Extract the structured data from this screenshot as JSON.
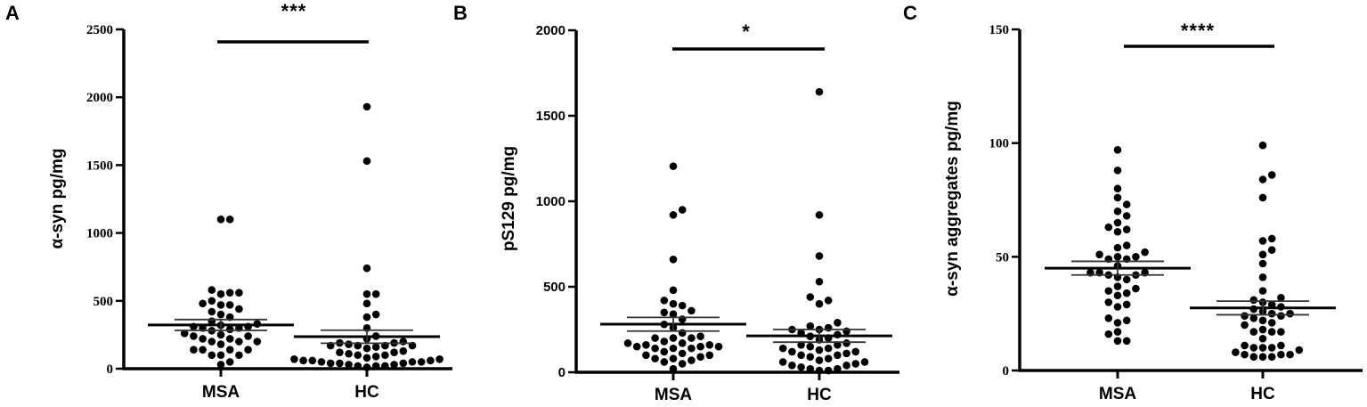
{
  "figure": {
    "panels": [
      {
        "letter": "A",
        "ylabel": "α-syn pg/mg",
        "significance": "***",
        "groups": [
          "MSA",
          "HC"
        ],
        "yticks": [
          "0",
          "500",
          "1000",
          "1500",
          "2000",
          "2500"
        ]
      },
      {
        "letter": "B",
        "ylabel": "pS129 pg/mg",
        "significance": "*",
        "groups": [
          "MSA",
          "HC"
        ],
        "yticks": [
          "0",
          "500",
          "1000",
          "1500",
          "2000"
        ]
      },
      {
        "letter": "C",
        "ylabel": "α-syn aggregates pg/mg",
        "significance": "****",
        "groups": [
          "MSA",
          "HC"
        ],
        "yticks": [
          "0",
          "50",
          "100",
          "150"
        ]
      }
    ]
  },
  "chart_data": [
    {
      "type": "scatter",
      "subtype": "dot plot with mean ± SEM",
      "panel": "A",
      "title": "",
      "xlabel": "",
      "ylabel": "α-syn pg/mg",
      "categories": [
        "MSA",
        "HC"
      ],
      "ylim": [
        0,
        2500
      ],
      "yticks": [
        0,
        500,
        1000,
        1500,
        2000,
        2500
      ],
      "grid": false,
      "significance": {
        "label": "***",
        "between": [
          "MSA",
          "HC"
        ]
      },
      "series": [
        {
          "name": "MSA",
          "mean": 322,
          "sem": 40,
          "values": [
            1100,
            1100,
            580,
            560,
            550,
            560,
            500,
            480,
            470,
            470,
            440,
            420,
            400,
            380,
            350,
            330,
            320,
            310,
            310,
            300,
            300,
            290,
            280,
            260,
            250,
            240,
            240,
            220,
            220,
            200,
            200,
            200,
            180,
            140,
            140,
            140,
            140,
            100,
            100,
            100,
            50,
            30
          ]
        },
        {
          "name": "HC",
          "mean": 236,
          "sem": 48,
          "values": [
            1930,
            1530,
            740,
            550,
            550,
            480,
            400,
            380,
            300,
            240,
            220,
            200,
            190,
            190,
            180,
            170,
            170,
            170,
            170,
            160,
            150,
            130,
            120,
            120,
            110,
            100,
            100,
            90,
            80,
            70,
            70,
            60,
            60,
            60,
            50,
            50,
            50,
            40,
            40,
            40,
            30,
            30,
            20,
            20,
            20,
            10
          ]
        }
      ]
    },
    {
      "type": "scatter",
      "subtype": "dot plot with mean ± SEM",
      "panel": "B",
      "title": "",
      "xlabel": "",
      "ylabel": "pS129 pg/mg",
      "categories": [
        "MSA",
        "HC"
      ],
      "ylim": [
        0,
        2000
      ],
      "yticks": [
        0,
        500,
        1000,
        1500,
        2000
      ],
      "grid": false,
      "significance": {
        "label": "*",
        "between": [
          "MSA",
          "HC"
        ]
      },
      "series": [
        {
          "name": "MSA",
          "mean": 281,
          "sem": 40,
          "values": [
            1205,
            950,
            920,
            660,
            480,
            420,
            400,
            390,
            360,
            350,
            340,
            310,
            280,
            260,
            230,
            210,
            200,
            200,
            200,
            180,
            170,
            170,
            160,
            160,
            150,
            150,
            150,
            140,
            140,
            140,
            120,
            110,
            100,
            100,
            90,
            80,
            80,
            70,
            60,
            50,
            20
          ]
        },
        {
          "name": "HC",
          "mean": 213,
          "sem": 37,
          "values": [
            1640,
            920,
            680,
            530,
            440,
            420,
            400,
            290,
            270,
            260,
            250,
            250,
            240,
            230,
            220,
            210,
            200,
            190,
            170,
            160,
            160,
            150,
            140,
            140,
            130,
            120,
            120,
            110,
            100,
            100,
            90,
            80,
            70,
            60,
            60,
            50,
            40,
            40,
            30,
            20,
            20,
            10,
            10
          ]
        }
      ]
    },
    {
      "type": "scatter",
      "subtype": "dot plot with mean ± SEM",
      "panel": "C",
      "title": "",
      "xlabel": "",
      "ylabel": "α-syn aggregates pg/mg",
      "categories": [
        "MSA",
        "HC"
      ],
      "ylim": [
        0,
        150
      ],
      "yticks": [
        0,
        50,
        100,
        150
      ],
      "grid": false,
      "significance": {
        "label": "****",
        "between": [
          "MSA",
          "HC"
        ]
      },
      "series": [
        {
          "name": "MSA",
          "mean": 45,
          "sem": 3,
          "values": [
            97,
            88,
            80,
            76,
            73,
            70,
            68,
            65,
            63,
            62,
            61,
            55,
            54,
            52,
            51,
            50,
            50,
            49,
            49,
            46,
            43,
            43,
            43,
            42,
            42,
            41,
            40,
            37,
            36,
            35,
            34,
            33,
            30,
            29,
            28,
            23,
            22,
            21,
            17,
            16,
            13,
            13
          ]
        },
        {
          "name": "HC",
          "mean": 27.5,
          "sem": 3,
          "values": [
            99,
            86,
            84,
            76,
            58,
            57,
            53,
            51,
            47,
            41,
            35,
            32,
            31,
            30,
            29,
            28,
            27,
            26,
            25,
            25,
            24,
            24,
            23,
            22,
            21,
            20,
            18,
            17,
            17,
            17,
            14,
            11,
            11,
            10,
            10,
            10,
            9,
            8,
            7,
            7,
            7,
            6,
            6,
            6
          ]
        }
      ]
    }
  ]
}
